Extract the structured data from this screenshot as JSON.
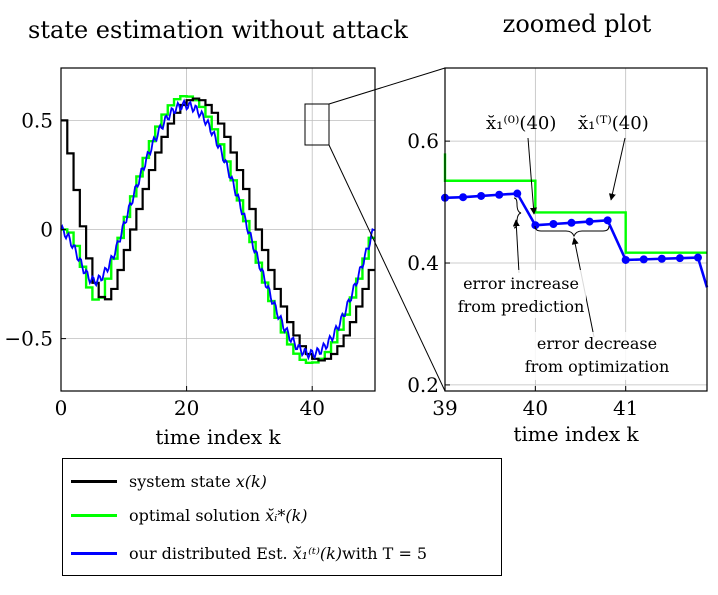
{
  "colors": {
    "state": "#000000",
    "optimal": "#00ff00",
    "distributed": "#0000ff"
  },
  "chart_data": [
    {
      "type": "line",
      "title": "state estimation without attack",
      "xlabel": "time index k",
      "ylabel": "",
      "xlim": [
        0,
        50
      ],
      "ylim": [
        -0.74,
        0.74
      ],
      "xticks": [
        0,
        20,
        40
      ],
      "yticks": [
        -0.5,
        0,
        0.5
      ],
      "xtick_labels": [
        "0",
        "20",
        "40"
      ],
      "ytick_labels": [
        "−0.5",
        "0",
        "0.5"
      ],
      "grid": true,
      "sine_params": {
        "amplitude": 0.6,
        "period": 40,
        "shift": 10,
        "state_start": 0.5
      }
    },
    {
      "type": "line",
      "title": "zoomed plot",
      "xlabel": "time index k",
      "xlim": [
        39,
        41.9
      ],
      "ylim": [
        0.19,
        0.72
      ],
      "xticks": [
        39,
        40,
        41
      ],
      "yticks": [
        0.2,
        0.4,
        0.6
      ],
      "xtick_labels": [
        "39",
        "40",
        "41"
      ],
      "ytick_labels": [
        "0.2",
        "0.4",
        "0.6"
      ],
      "grid": true,
      "series": [
        {
          "name": "optimal solution",
          "x": [
            39,
            39,
            40,
            40,
            41,
            41,
            41.9
          ],
          "y": [
            0.58,
            0.535,
            0.535,
            0.483,
            0.483,
            0.417,
            0.417
          ]
        },
        {
          "name": "our distributed Est.",
          "points_x": [
            39,
            39.2,
            39.4,
            39.6,
            39.8,
            40,
            40.2,
            40.4,
            40.6,
            40.8,
            41,
            41.2,
            41.4,
            41.6,
            41.8
          ],
          "points_y": [
            0.507,
            0.508,
            0.51,
            0.512,
            0.514,
            0.462,
            0.464,
            0.466,
            0.468,
            0.47,
            0.405,
            0.406,
            0.407,
            0.408,
            0.409
          ]
        }
      ],
      "annotations": {
        "est0": "x̆₁⁽⁰⁾(40)",
        "estT": "x̆₁⁽ᵀ⁾(40)",
        "err_inc_1": "error increase",
        "err_inc_2": "from prediction",
        "err_dec_1": "error decrease",
        "err_dec_2": "from optimization"
      }
    }
  ],
  "legend": {
    "items": [
      {
        "prefix": "system state ",
        "math": "x(k)",
        "suffix": ""
      },
      {
        "prefix": "optimal solution ",
        "math": "x̆ᵢ*(k)",
        "suffix": ""
      },
      {
        "prefix": "our distributed Est. ",
        "math": "x̆₁⁽ᵗ⁾(k)",
        "suffix": " with T = 5"
      }
    ]
  }
}
